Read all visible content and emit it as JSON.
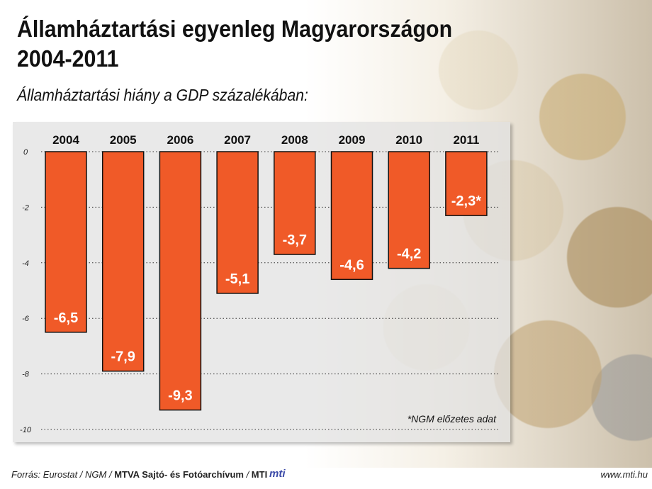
{
  "header": {
    "title_line1": "Államháztartási egyenleg Magyarországon",
    "title_line2": "2004-2011",
    "subtitle": "Államháztartási hiány a GDP százalékában:"
  },
  "footer": {
    "source_prefix": "Forrás: Eurostat / NGM / ",
    "source_bold": "MTVA Sajtó- és Fotóarchívum",
    "source_sep": " / ",
    "source_mti": "MTI",
    "logo_text": "mti",
    "url": "www.mti.hu"
  },
  "colors": {
    "bar": "#f05a28",
    "bar_stroke": "#111111",
    "label": "#ffffff"
  },
  "chart_data": {
    "type": "bar",
    "categories": [
      "2004",
      "2005",
      "2006",
      "2007",
      "2008",
      "2009",
      "2010",
      "2011"
    ],
    "values": [
      -6.5,
      -7.9,
      -9.3,
      -5.1,
      -3.7,
      -4.6,
      -4.2,
      -2.3
    ],
    "data_labels": [
      "-6,5",
      "-7,9",
      "-9,3",
      "-5,1",
      "-3,7",
      "-4,6",
      "-4,2",
      "-2,3*"
    ],
    "yticks": [
      0,
      -2,
      -4,
      -6,
      -8,
      -10
    ],
    "ylim": [
      -10,
      0
    ],
    "grid": true,
    "annotation": "*NGM előzetes adat"
  }
}
